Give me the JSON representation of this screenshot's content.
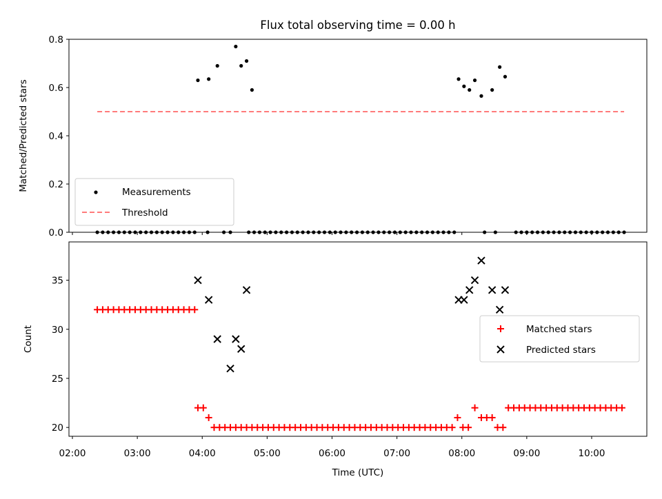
{
  "title": "Flux total observing time = 0.00 h",
  "colors": {
    "measurement": "#000000",
    "threshold": "#ff7a7a",
    "matched": "#ff0000",
    "predicted": "#000000"
  },
  "chart_data": [
    {
      "type": "scatter",
      "title": "Flux total observing time = 0.00 h",
      "xlabel": "",
      "ylabel": "Matched/Predicted stars",
      "xlim": [
        "02:00",
        "10:51"
      ],
      "ylim": [
        0,
        0.8
      ],
      "yticks": [
        "0.0",
        "0.2",
        "0.4",
        "0.6",
        "0.8"
      ],
      "legend_position": "lower-left",
      "series": [
        {
          "name": "Measurements",
          "marker": "dot",
          "x": [
            "02:23",
            "02:28",
            "02:33",
            "02:38",
            "02:43",
            "02:48",
            "02:53",
            "02:58",
            "03:03",
            "03:08",
            "03:13",
            "03:18",
            "03:23",
            "03:28",
            "03:33",
            "03:38",
            "03:43",
            "03:48",
            "03:53",
            "04:05",
            "04:20",
            "04:26",
            "04:43",
            "04:48",
            "04:53",
            "04:58",
            "05:03",
            "05:08",
            "05:13",
            "05:18",
            "05:23",
            "05:28",
            "05:33",
            "05:38",
            "05:43",
            "05:48",
            "05:53",
            "05:58",
            "06:03",
            "06:08",
            "06:13",
            "06:18",
            "06:23",
            "06:28",
            "06:33",
            "06:38",
            "06:43",
            "06:48",
            "06:53",
            "06:58",
            "07:03",
            "07:08",
            "07:13",
            "07:18",
            "07:23",
            "07:28",
            "07:33",
            "07:38",
            "07:43",
            "07:48",
            "07:53",
            "08:21",
            "08:31",
            "08:50",
            "08:55",
            "09:00",
            "09:05",
            "09:10",
            "09:15",
            "09:20",
            "09:25",
            "09:30",
            "09:35",
            "09:40",
            "09:45",
            "09:50",
            "09:55",
            "10:00",
            "10:05",
            "10:10",
            "10:15",
            "10:20",
            "10:25",
            "10:30",
            "03:56",
            "04:06",
            "04:14",
            "04:31",
            "04:36",
            "04:41",
            "04:46",
            "07:57",
            "08:02",
            "08:07",
            "08:12",
            "08:18",
            "08:28",
            "08:35",
            "08:40"
          ],
          "y": [
            0,
            0,
            0,
            0,
            0,
            0,
            0,
            0,
            0,
            0,
            0,
            0,
            0,
            0,
            0,
            0,
            0,
            0,
            0,
            0,
            0,
            0,
            0,
            0,
            0,
            0,
            0,
            0,
            0,
            0,
            0,
            0,
            0,
            0,
            0,
            0,
            0,
            0,
            0,
            0,
            0,
            0,
            0,
            0,
            0,
            0,
            0,
            0,
            0,
            0,
            0,
            0,
            0,
            0,
            0,
            0,
            0,
            0,
            0,
            0,
            0,
            0,
            0,
            0,
            0,
            0,
            0,
            0,
            0,
            0,
            0,
            0,
            0,
            0,
            0,
            0,
            0,
            0,
            0,
            0,
            0,
            0,
            0,
            0,
            0.63,
            0.635,
            0.69,
            0.77,
            0.69,
            0.71,
            0.59,
            0.635,
            0.605,
            0.59,
            0.63,
            0.565,
            0.59,
            0.685,
            0.645
          ]
        },
        {
          "name": "Threshold",
          "style": "dashed",
          "x": [
            "02:23",
            "10:30"
          ],
          "y": [
            0.5,
            0.5
          ]
        }
      ]
    },
    {
      "type": "scatter",
      "title": "",
      "xlabel": "Time (UTC)",
      "ylabel": "Count",
      "xlim": [
        "02:00",
        "10:51"
      ],
      "ylim": [
        19.1,
        38.9
      ],
      "xticks": [
        "02:00",
        "03:00",
        "04:00",
        "05:00",
        "06:00",
        "07:00",
        "08:00",
        "09:00",
        "10:00"
      ],
      "yticks": [
        "20",
        "25",
        "30",
        "35"
      ],
      "legend_position": "center-right",
      "series": [
        {
          "name": "Matched stars",
          "marker": "plus",
          "x": [
            "02:23",
            "02:28",
            "02:33",
            "02:38",
            "02:43",
            "02:48",
            "02:53",
            "02:58",
            "03:03",
            "03:08",
            "03:13",
            "03:18",
            "03:23",
            "03:28",
            "03:33",
            "03:38",
            "03:43",
            "03:48",
            "03:53",
            "03:56",
            "04:01",
            "04:06",
            "04:11",
            "04:16",
            "04:21",
            "04:26",
            "04:31",
            "04:36",
            "04:41",
            "04:46",
            "04:51",
            "04:56",
            "05:01",
            "05:06",
            "05:11",
            "05:16",
            "05:21",
            "05:26",
            "05:31",
            "05:36",
            "05:41",
            "05:46",
            "05:51",
            "05:56",
            "06:01",
            "06:06",
            "06:11",
            "06:16",
            "06:21",
            "06:26",
            "06:31",
            "06:36",
            "06:41",
            "06:46",
            "06:51",
            "06:56",
            "07:01",
            "07:06",
            "07:11",
            "07:16",
            "07:21",
            "07:26",
            "07:31",
            "07:36",
            "07:41",
            "07:46",
            "07:51",
            "07:56",
            "08:01",
            "08:06",
            "08:12",
            "08:18",
            "08:23",
            "08:28",
            "08:33",
            "08:38",
            "08:43",
            "08:48",
            "08:53",
            "08:58",
            "09:03",
            "09:08",
            "09:13",
            "09:18",
            "09:23",
            "09:28",
            "09:33",
            "09:38",
            "09:43",
            "09:48",
            "09:53",
            "09:58",
            "10:03",
            "10:08",
            "10:13",
            "10:18",
            "10:23",
            "10:28"
          ],
          "y": [
            32,
            32,
            32,
            32,
            32,
            32,
            32,
            32,
            32,
            32,
            32,
            32,
            32,
            32,
            32,
            32,
            32,
            32,
            32,
            22,
            22,
            21,
            20,
            20,
            20,
            20,
            20,
            20,
            20,
            20,
            20,
            20,
            20,
            20,
            20,
            20,
            20,
            20,
            20,
            20,
            20,
            20,
            20,
            20,
            20,
            20,
            20,
            20,
            20,
            20,
            20,
            20,
            20,
            20,
            20,
            20,
            20,
            20,
            20,
            20,
            20,
            20,
            20,
            20,
            20,
            20,
            20,
            21,
            20,
            20,
            22,
            21,
            21,
            21,
            20,
            20,
            22,
            22,
            22,
            22,
            22,
            22,
            22,
            22,
            22,
            22,
            22,
            22,
            22,
            22,
            22,
            22,
            22,
            22,
            22,
            22,
            22,
            22
          ]
        },
        {
          "name": "Predicted stars",
          "marker": "x",
          "x": [
            "03:56",
            "04:06",
            "04:14",
            "04:26",
            "04:31",
            "04:36",
            "04:41",
            "07:57",
            "08:02",
            "08:07",
            "08:12",
            "08:18",
            "08:28",
            "08:35",
            "08:40"
          ],
          "y": [
            35,
            33,
            29,
            26,
            29,
            28,
            34,
            33,
            33,
            34,
            35,
            37,
            34,
            32,
            34
          ]
        }
      ]
    }
  ]
}
